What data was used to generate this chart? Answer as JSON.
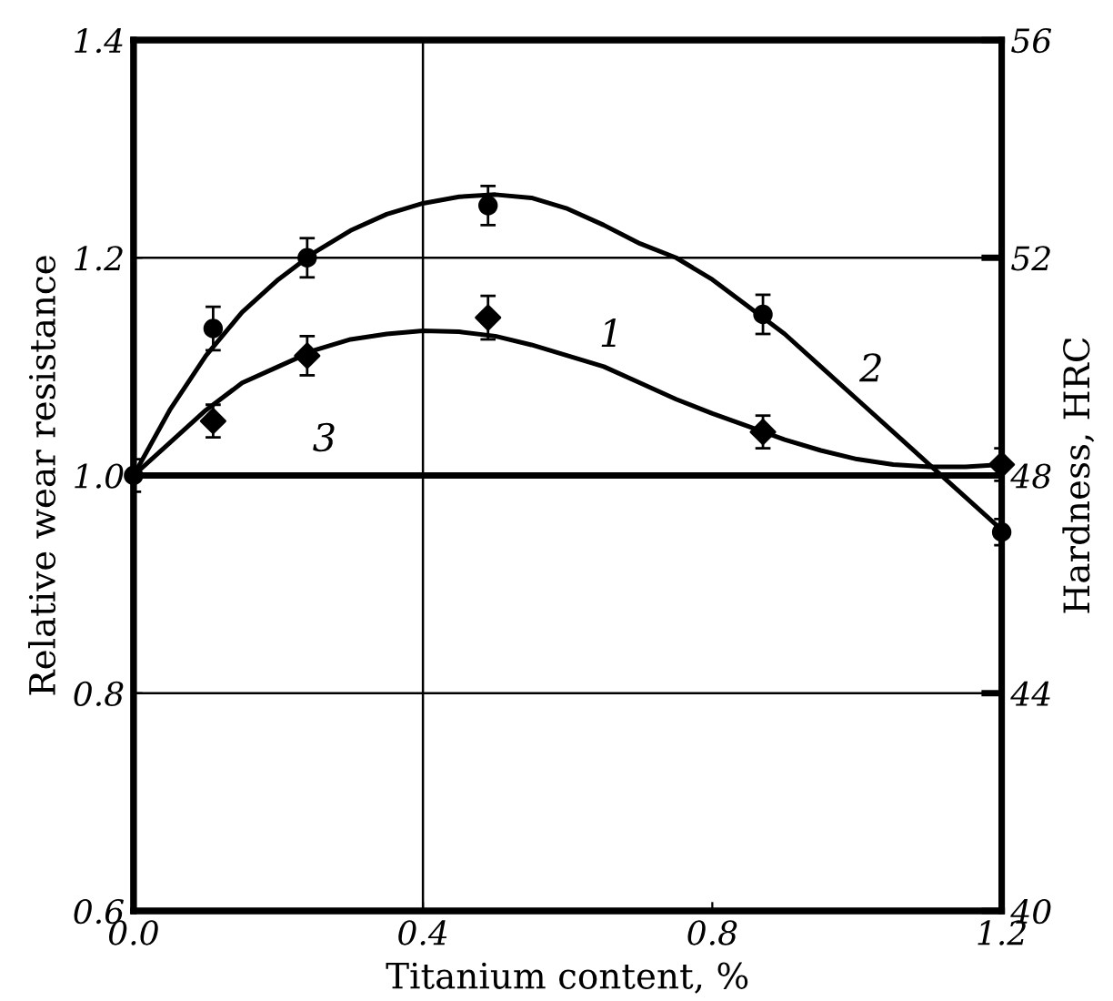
{
  "chart_data": {
    "type": "scatter",
    "xlabel": "Titanium content, %",
    "ylabel": "Relative wear resistance",
    "y2label": "Hardness, HRC",
    "xlim": [
      0.0,
      1.2
    ],
    "xticks": [
      {
        "value": 0.0,
        "label": "0.0"
      },
      0.4,
      0.8,
      1.2
    ],
    "ylim": [
      0.6,
      1.4
    ],
    "yticks": [
      0.6,
      0.8,
      {
        "value": 1.0,
        "label": "1.0"
      },
      1.2,
      1.4
    ],
    "y2lim": [
      40,
      56
    ],
    "y2ticks": [
      40,
      44,
      48,
      52,
      56
    ],
    "grid": false,
    "legend": false,
    "ref_lines": [
      {
        "axis": "y",
        "value": 0.8,
        "line_style": "solid"
      },
      {
        "axis": "y",
        "value": 1.2,
        "line_style": "solid"
      },
      {
        "axis": "y",
        "value": 1.0,
        "line_style": "solid"
      },
      {
        "axis": "x",
        "value": 0.4,
        "line_style": "solid"
      }
    ],
    "series": [
      {
        "marker": "circle",
        "color": "#000000",
        "x": [
          0.0,
          0.11,
          0.24,
          0.49,
          0.87,
          1.2
        ],
        "values": [
          1.0,
          1.135,
          1.2,
          1.248,
          1.148,
          0.948
        ],
        "errors": [
          0.015,
          0.02,
          0.018,
          0.018,
          0.018,
          0.012
        ]
      },
      {
        "marker": "diamond",
        "color": "#000000",
        "x": [
          0.11,
          0.24,
          0.49,
          0.87,
          1.2
        ],
        "values": [
          1.05,
          1.11,
          1.145,
          1.04,
          1.01
        ],
        "errors": [
          0.015,
          0.018,
          0.02,
          0.015,
          0.015
        ]
      },
      {
        "type": "line",
        "marker": "none",
        "line_style": "solid",
        "color": "#000000",
        "x": [
          0,
          0.05,
          0.1,
          0.15,
          0.2,
          0.25,
          0.3,
          0.35,
          0.4,
          0.45,
          0.5,
          0.55,
          0.6,
          0.65,
          0.7,
          0.75,
          0.8,
          0.85,
          0.9,
          0.95,
          1.0,
          1.05,
          1.1,
          1.15,
          1.2
        ],
        "values": [
          1.0,
          1.06,
          1.11,
          1.15,
          1.18,
          1.205,
          1.225,
          1.24,
          1.25,
          1.256,
          1.258,
          1.255,
          1.245,
          1.23,
          1.213,
          1.2,
          1.18,
          1.155,
          1.13,
          1.1,
          1.07,
          1.04,
          1.01,
          0.98,
          0.95
        ]
      },
      {
        "type": "line",
        "marker": "none",
        "line_style": "solid",
        "color": "#000000",
        "x": [
          0,
          0.05,
          0.1,
          0.15,
          0.2,
          0.25,
          0.3,
          0.35,
          0.4,
          0.45,
          0.5,
          0.55,
          0.6,
          0.65,
          0.7,
          0.75,
          0.8,
          0.85,
          0.9,
          0.95,
          1.0,
          1.05,
          1.1,
          1.15,
          1.2
        ],
        "values": [
          1.0,
          1.03,
          1.06,
          1.085,
          1.1,
          1.115,
          1.125,
          1.13,
          1.133,
          1.132,
          1.128,
          1.12,
          1.11,
          1.1,
          1.085,
          1.07,
          1.057,
          1.045,
          1.033,
          1.023,
          1.015,
          1.01,
          1.008,
          1.008,
          1.01
        ]
      }
    ],
    "annotations": [
      "1",
      "2",
      "3"
    ]
  }
}
